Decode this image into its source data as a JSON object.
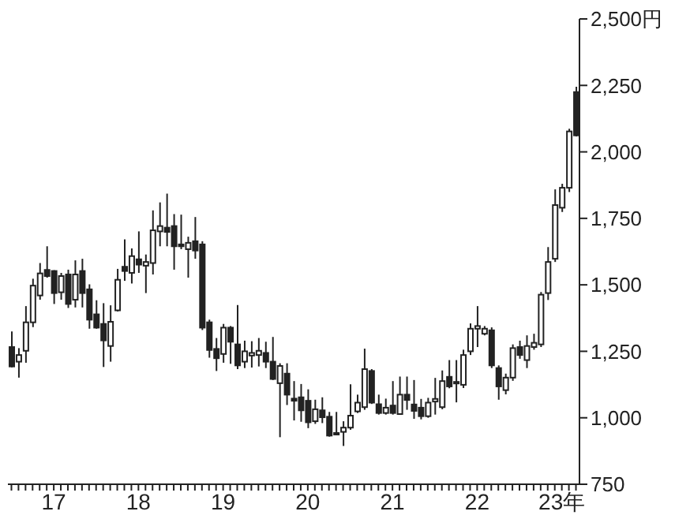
{
  "chart_data": {
    "type": "candlestick",
    "color": "#222222",
    "x": [
      "2016-07",
      "2016-08",
      "2016-09",
      "2016-10",
      "2016-11",
      "2016-12",
      "2017-01",
      "2017-02",
      "2017-03",
      "2017-04",
      "2017-05",
      "2017-06",
      "2017-07",
      "2017-08",
      "2017-09",
      "2017-10",
      "2017-11",
      "2017-12",
      "2018-01",
      "2018-02",
      "2018-03",
      "2018-04",
      "2018-05",
      "2018-06",
      "2018-07",
      "2018-08",
      "2018-09",
      "2018-10",
      "2018-11",
      "2018-12",
      "2019-01",
      "2019-02",
      "2019-03",
      "2019-04",
      "2019-05",
      "2019-06",
      "2019-07",
      "2019-08",
      "2019-09",
      "2019-10",
      "2019-11",
      "2019-12",
      "2020-01",
      "2020-02",
      "2020-03",
      "2020-04",
      "2020-05",
      "2020-06",
      "2020-07",
      "2020-08",
      "2020-09",
      "2020-10",
      "2020-11",
      "2020-12",
      "2021-01",
      "2021-02",
      "2021-03",
      "2021-04",
      "2021-05",
      "2021-06",
      "2021-07",
      "2021-08",
      "2021-09",
      "2021-10",
      "2021-11",
      "2021-12",
      "2022-01",
      "2022-02",
      "2022-03",
      "2022-04",
      "2022-05",
      "2022-06",
      "2022-07",
      "2022-08",
      "2022-09",
      "2022-10",
      "2022-11",
      "2022-12",
      "2023-01",
      "2023-02",
      "2023-03"
    ],
    "ohlc": [
      [
        1266,
        1325,
        1190,
        1193
      ],
      [
        1211,
        1262,
        1151,
        1236
      ],
      [
        1252,
        1420,
        1207,
        1359
      ],
      [
        1359,
        1523,
        1341,
        1497
      ],
      [
        1460,
        1582,
        1444,
        1543
      ],
      [
        1556,
        1645,
        1527,
        1533
      ],
      [
        1552,
        1555,
        1428,
        1469
      ],
      [
        1472,
        1545,
        1444,
        1533
      ],
      [
        1539,
        1557,
        1413,
        1428
      ],
      [
        1444,
        1592,
        1415,
        1539
      ],
      [
        1552,
        1598,
        1415,
        1469
      ],
      [
        1483,
        1502,
        1335,
        1369
      ],
      [
        1389,
        1442,
        1335,
        1339
      ],
      [
        1353,
        1431,
        1191,
        1291
      ],
      [
        1270,
        1423,
        1211,
        1361
      ],
      [
        1404,
        1560,
        1400,
        1519
      ],
      [
        1568,
        1671,
        1515,
        1552
      ],
      [
        1545,
        1637,
        1505,
        1608
      ],
      [
        1596,
        1701,
        1545,
        1576
      ],
      [
        1572,
        1614,
        1469,
        1586
      ],
      [
        1582,
        1780,
        1539,
        1705
      ],
      [
        1701,
        1810,
        1645,
        1721
      ],
      [
        1715,
        1843,
        1645,
        1699
      ],
      [
        1721,
        1766,
        1557,
        1645
      ],
      [
        1652,
        1764,
        1634,
        1645
      ],
      [
        1634,
        1681,
        1527,
        1658
      ],
      [
        1664,
        1755,
        1598,
        1629
      ],
      [
        1652,
        1664,
        1330,
        1339
      ],
      [
        1359,
        1369,
        1226,
        1255
      ],
      [
        1259,
        1300,
        1176,
        1224
      ],
      [
        1240,
        1353,
        1207,
        1339
      ],
      [
        1339,
        1345,
        1203,
        1286
      ],
      [
        1276,
        1424,
        1183,
        1197
      ],
      [
        1211,
        1290,
        1187,
        1250
      ],
      [
        1234,
        1288,
        1189,
        1244
      ],
      [
        1236,
        1300,
        1193,
        1252
      ],
      [
        1244,
        1286,
        1187,
        1211
      ],
      [
        1211,
        1304,
        1142,
        1146
      ],
      [
        1130,
        1205,
        927,
        1195
      ],
      [
        1166,
        1205,
        1048,
        1087
      ],
      [
        1072,
        1138,
        990,
        1064
      ],
      [
        1077,
        1127,
        985,
        1028
      ],
      [
        1064,
        1107,
        961,
        983
      ],
      [
        987,
        1068,
        977,
        1032
      ],
      [
        1028,
        1077,
        980,
        1002
      ],
      [
        1004,
        1022,
        929,
        933
      ],
      [
        943,
        1022,
        935,
        937
      ],
      [
        947,
        987,
        894,
        963
      ],
      [
        963,
        1126,
        955,
        1008
      ],
      [
        1024,
        1087,
        1018,
        1057
      ],
      [
        1040,
        1260,
        1030,
        1183
      ],
      [
        1176,
        1183,
        1052,
        1057
      ],
      [
        1051,
        1087,
        1012,
        1018
      ],
      [
        1018,
        1072,
        1012,
        1038
      ],
      [
        1046,
        1138,
        1012,
        1018
      ],
      [
        1014,
        1155,
        1012,
        1087
      ],
      [
        1087,
        1155,
        1030,
        1067
      ],
      [
        1050,
        1142,
        996,
        1026
      ],
      [
        1038,
        1071,
        994,
        1006
      ],
      [
        1006,
        1075,
        1000,
        1057
      ],
      [
        1061,
        1150,
        1012,
        1071
      ],
      [
        1040,
        1178,
        1032,
        1138
      ],
      [
        1154,
        1217,
        1111,
        1118
      ],
      [
        1131,
        1217,
        1058,
        1135
      ],
      [
        1124,
        1256,
        1112,
        1236
      ],
      [
        1250,
        1355,
        1236,
        1335
      ],
      [
        1335,
        1420,
        1266,
        1345
      ],
      [
        1316,
        1345,
        1310,
        1335
      ],
      [
        1329,
        1340,
        1187,
        1197
      ],
      [
        1187,
        1197,
        1068,
        1118
      ],
      [
        1104,
        1166,
        1088,
        1151
      ],
      [
        1151,
        1276,
        1139,
        1262
      ],
      [
        1266,
        1290,
        1222,
        1236
      ],
      [
        1217,
        1310,
        1187,
        1270
      ],
      [
        1266,
        1316,
        1256,
        1282
      ],
      [
        1276,
        1473,
        1266,
        1463
      ],
      [
        1469,
        1642,
        1443,
        1586
      ],
      [
        1598,
        1859,
        1586,
        1800
      ],
      [
        1790,
        1880,
        1774,
        1865
      ],
      [
        1865,
        2087,
        1849,
        2077
      ],
      [
        2225,
        2245,
        2058,
        2062
      ]
    ],
    "xlim": [
      "2016-06-16",
      "2023-03-16"
    ],
    "xticks": [
      {
        "value": "2016-07",
        "label": null
      },
      {
        "value": "2016-08",
        "label": null
      },
      {
        "value": "2016-09",
        "label": null
      },
      {
        "value": "2016-10",
        "label": null
      },
      {
        "value": "2016-11",
        "label": null
      },
      {
        "value": "2016-12",
        "label": null
      },
      {
        "value": "2017-01",
        "label": "17"
      },
      {
        "value": "2017-02",
        "label": null
      },
      {
        "value": "2017-03",
        "label": null
      },
      {
        "value": "2017-04",
        "label": null
      },
      {
        "value": "2017-05",
        "label": null
      },
      {
        "value": "2017-06",
        "label": null
      },
      {
        "value": "2017-07",
        "label": null
      },
      {
        "value": "2017-08",
        "label": null
      },
      {
        "value": "2017-09",
        "label": null
      },
      {
        "value": "2017-10",
        "label": null
      },
      {
        "value": "2017-11",
        "label": null
      },
      {
        "value": "2017-12",
        "label": null
      },
      {
        "value": "2018-01",
        "label": "18"
      },
      {
        "value": "2018-02",
        "label": null
      },
      {
        "value": "2018-03",
        "label": null
      },
      {
        "value": "2018-04",
        "label": null
      },
      {
        "value": "2018-05",
        "label": null
      },
      {
        "value": "2018-06",
        "label": null
      },
      {
        "value": "2018-07",
        "label": null
      },
      {
        "value": "2018-08",
        "label": null
      },
      {
        "value": "2018-09",
        "label": null
      },
      {
        "value": "2018-10",
        "label": null
      },
      {
        "value": "2018-11",
        "label": null
      },
      {
        "value": "2018-12",
        "label": null
      },
      {
        "value": "2019-01",
        "label": "19"
      },
      {
        "value": "2019-02",
        "label": null
      },
      {
        "value": "2019-03",
        "label": null
      },
      {
        "value": "2019-04",
        "label": null
      },
      {
        "value": "2019-05",
        "label": null
      },
      {
        "value": "2019-06",
        "label": null
      },
      {
        "value": "2019-07",
        "label": null
      },
      {
        "value": "2019-08",
        "label": null
      },
      {
        "value": "2019-09",
        "label": null
      },
      {
        "value": "2019-10",
        "label": null
      },
      {
        "value": "2019-11",
        "label": null
      },
      {
        "value": "2019-12",
        "label": null
      },
      {
        "value": "2020-01",
        "label": "20"
      },
      {
        "value": "2020-02",
        "label": null
      },
      {
        "value": "2020-03",
        "label": null
      },
      {
        "value": "2020-04",
        "label": null
      },
      {
        "value": "2020-05",
        "label": null
      },
      {
        "value": "2020-06",
        "label": null
      },
      {
        "value": "2020-07",
        "label": null
      },
      {
        "value": "2020-08",
        "label": null
      },
      {
        "value": "2020-09",
        "label": null
      },
      {
        "value": "2020-10",
        "label": null
      },
      {
        "value": "2020-11",
        "label": null
      },
      {
        "value": "2020-12",
        "label": null
      },
      {
        "value": "2021-01",
        "label": "21"
      },
      {
        "value": "2021-02",
        "label": null
      },
      {
        "value": "2021-03",
        "label": null
      },
      {
        "value": "2021-04",
        "label": null
      },
      {
        "value": "2021-05",
        "label": null
      },
      {
        "value": "2021-06",
        "label": null
      },
      {
        "value": "2021-07",
        "label": null
      },
      {
        "value": "2021-08",
        "label": null
      },
      {
        "value": "2021-09",
        "label": null
      },
      {
        "value": "2021-10",
        "label": null
      },
      {
        "value": "2021-11",
        "label": null
      },
      {
        "value": "2021-12",
        "label": null
      },
      {
        "value": "2022-01",
        "label": "22"
      },
      {
        "value": "2022-02",
        "label": null
      },
      {
        "value": "2022-03",
        "label": null
      },
      {
        "value": "2022-04",
        "label": null
      },
      {
        "value": "2022-05",
        "label": null
      },
      {
        "value": "2022-06",
        "label": null
      },
      {
        "value": "2022-07",
        "label": null
      },
      {
        "value": "2022-08",
        "label": null
      },
      {
        "value": "2022-09",
        "label": null
      },
      {
        "value": "2022-10",
        "label": null
      },
      {
        "value": "2022-11",
        "label": null
      },
      {
        "value": "2022-12",
        "label": null
      },
      {
        "value": "2023-01",
        "label": "23年"
      },
      {
        "value": "2023-02",
        "label": null
      },
      {
        "value": "2023-03",
        "label": null
      }
    ],
    "ylim": [
      750,
      2500
    ],
    "yticks": [
      {
        "value": 750,
        "label": "750"
      },
      {
        "value": 1000,
        "label": "1,000"
      },
      {
        "value": 1250,
        "label": "1,250"
      },
      {
        "value": 1500,
        "label": "1,500"
      },
      {
        "value": 1750,
        "label": "1,750"
      },
      {
        "value": 2000,
        "label": "2,000"
      },
      {
        "value": 2250,
        "label": "2,250"
      },
      {
        "value": 2500,
        "label": "2,500円"
      }
    ]
  }
}
